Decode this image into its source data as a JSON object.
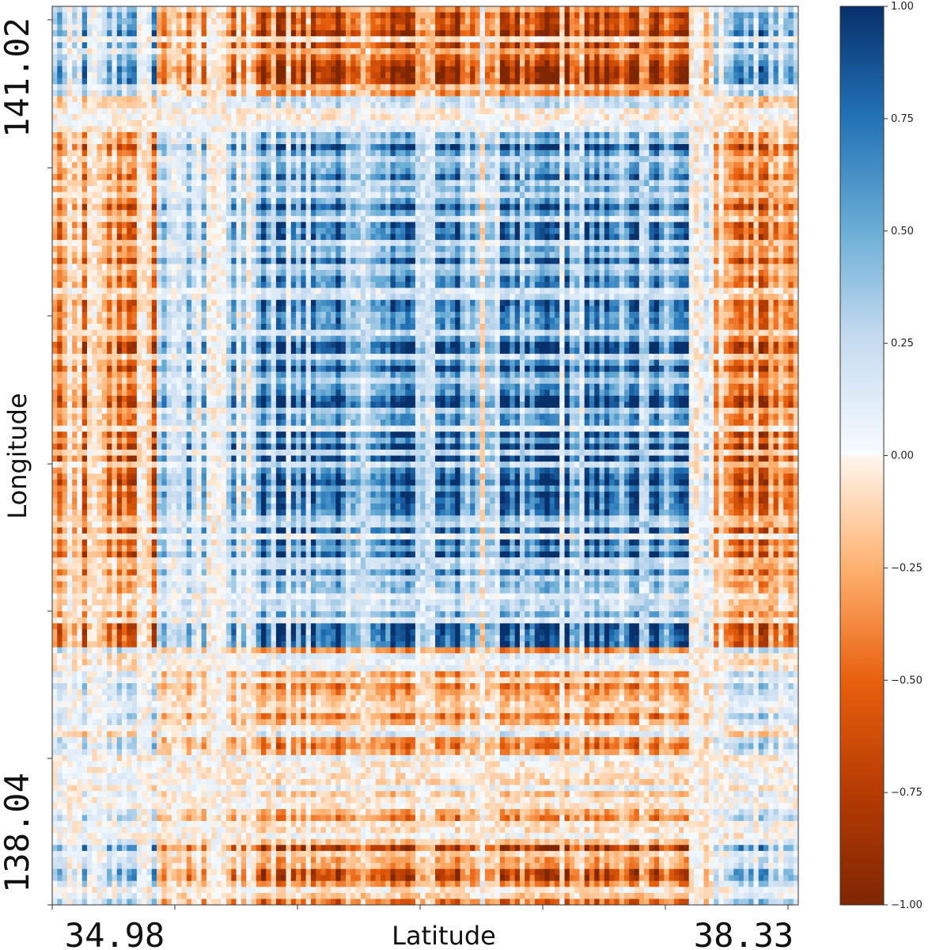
{
  "chart_data": {
    "type": "heatmap",
    "title": "",
    "xlabel": "Latitude",
    "ylabel": "Longitude",
    "x_tick_labels": [
      "34.98",
      "38.33"
    ],
    "y_tick_labels": [
      "141.02",
      "138.04"
    ],
    "x_range": [
      34.98,
      38.33
    ],
    "y_range": [
      138.04,
      141.02
    ],
    "grid": false,
    "colorbar": {
      "vmin": -1.0,
      "vmax": 1.0,
      "ticks": [
        "1.00",
        "0.75",
        "0.50",
        "0.25",
        "0.00",
        "−0.25",
        "−0.50",
        "−0.75",
        "−1.00"
      ],
      "colormap": [
        "#7f2704",
        "#d94801",
        "#fd8d3c",
        "#fdd0a2",
        "#fff5eb",
        "#f7fbff",
        "#c6dbef",
        "#6baed6",
        "#2171b5",
        "#08306b"
      ]
    },
    "description_pattern": "Correlation matrix: strong positive (blue) block in the center, negative (orange) bands along top rows, bottom rows and left/right columns."
  }
}
